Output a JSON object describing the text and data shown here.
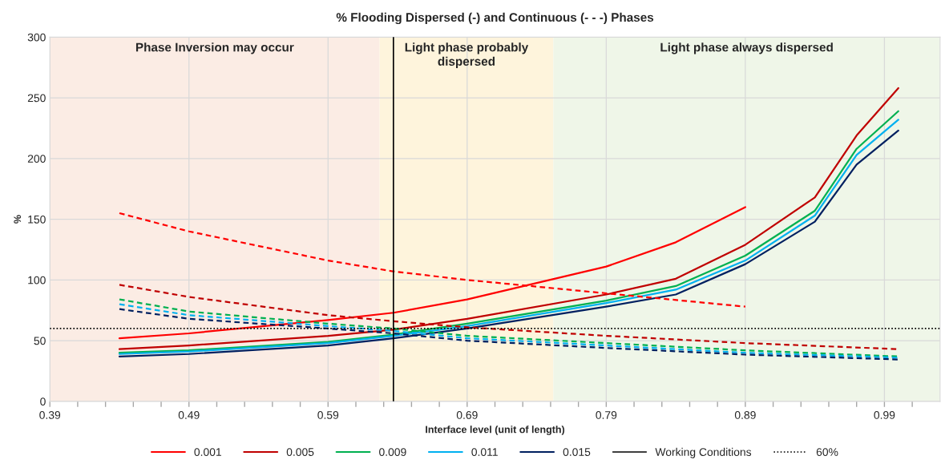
{
  "chart_data": {
    "type": "line",
    "title": "% Flooding Dispersed (-) and Continuous (- - -) Phases",
    "xlabel": "Interface level (unit of length)",
    "ylabel": "%",
    "xlim": [
      0.39,
      1.03
    ],
    "ylim": [
      0,
      300
    ],
    "xticks": [
      0.39,
      {
        "value": 0.41,
        "label": null
      },
      {
        "value": 0.43,
        "label": null
      },
      {
        "value": 0.45,
        "label": null
      },
      {
        "value": 0.47,
        "label": null
      },
      0.49,
      {
        "value": 0.51,
        "label": null
      },
      {
        "value": 0.53,
        "label": null
      },
      {
        "value": 0.55,
        "label": null
      },
      {
        "value": 0.57,
        "label": null
      },
      0.59,
      {
        "value": 0.61,
        "label": null
      },
      {
        "value": 0.63,
        "label": null
      },
      {
        "value": 0.65,
        "label": null
      },
      {
        "value": 0.67,
        "label": null
      },
      0.69,
      {
        "value": 0.71,
        "label": null
      },
      {
        "value": 0.73,
        "label": null
      },
      {
        "value": 0.75,
        "label": null
      },
      {
        "value": 0.77,
        "label": null
      },
      0.79,
      {
        "value": 0.81,
        "label": null
      },
      {
        "value": 0.83,
        "label": null
      },
      {
        "value": 0.85,
        "label": null
      },
      {
        "value": 0.87,
        "label": null
      },
      0.89,
      {
        "value": 0.91,
        "label": null
      },
      {
        "value": 0.93,
        "label": null
      },
      {
        "value": 0.95,
        "label": null
      },
      {
        "value": 0.97,
        "label": null
      },
      0.99,
      {
        "value": 1.01,
        "label": null
      }
    ],
    "yticks": [
      0,
      50,
      100,
      150,
      200,
      250,
      300
    ],
    "grid": true,
    "legend": "bottom",
    "marker": "none",
    "series": [
      {
        "name": "0.001",
        "color": "#ff0000",
        "line_style": "solid",
        "x": [
          0.44,
          0.49,
          0.59,
          0.637,
          0.69,
          0.79,
          0.84,
          0.89
        ],
        "values": [
          52,
          56,
          67,
          73,
          84,
          111,
          131,
          160
        ]
      },
      {
        "name": "0.005",
        "color": "#c00000",
        "line_style": "solid",
        "x": [
          0.44,
          0.49,
          0.59,
          0.637,
          0.69,
          0.79,
          0.84,
          0.89,
          0.94,
          0.97,
          1.0
        ],
        "values": [
          43,
          46,
          54,
          59,
          68,
          88,
          101,
          129,
          168,
          219,
          258
        ]
      },
      {
        "name": "0.009",
        "color": "#00b050",
        "line_style": "solid",
        "x": [
          0.44,
          0.49,
          0.59,
          0.637,
          0.69,
          0.79,
          0.84,
          0.89,
          0.94,
          0.97,
          1.0
        ],
        "values": [
          40,
          42,
          49,
          55,
          64,
          83,
          95,
          120,
          157,
          208,
          239
        ]
      },
      {
        "name": "0.011",
        "color": "#00b0f0",
        "line_style": "solid",
        "x": [
          0.44,
          0.49,
          0.59,
          0.637,
          0.69,
          0.79,
          0.84,
          0.89,
          0.94,
          0.97,
          1.0
        ],
        "values": [
          39,
          41,
          48,
          54,
          62,
          81,
          92,
          116,
          153,
          203,
          232
        ]
      },
      {
        "name": "0.015",
        "color": "#002060",
        "line_style": "solid",
        "x": [
          0.44,
          0.49,
          0.59,
          0.637,
          0.69,
          0.79,
          0.84,
          0.89,
          0.94,
          0.97,
          1.0
        ],
        "values": [
          37,
          39,
          46,
          52,
          60,
          78,
          88,
          113,
          148,
          195,
          223
        ]
      },
      {
        "color": "#ff0000",
        "line_style": "dashed",
        "x": [
          0.44,
          0.49,
          0.59,
          0.637,
          0.69,
          0.79,
          0.89
        ],
        "values": [
          155,
          140,
          116,
          107,
          100,
          89,
          78
        ]
      },
      {
        "color": "#c00000",
        "line_style": "dashed",
        "x": [
          0.44,
          0.49,
          0.59,
          0.637,
          0.69,
          0.79,
          0.89,
          1.0
        ],
        "values": [
          96,
          86,
          71,
          66,
          61,
          54,
          48,
          43
        ]
      },
      {
        "color": "#00b050",
        "line_style": "dashed",
        "x": [
          0.44,
          0.49,
          0.59,
          0.637,
          0.69,
          0.79,
          0.89,
          1.0
        ],
        "values": [
          84,
          74,
          64,
          60,
          54,
          48,
          42,
          37
        ]
      },
      {
        "color": "#00b0f0",
        "line_style": "dashed",
        "x": [
          0.44,
          0.49,
          0.59,
          0.637,
          0.69,
          0.79,
          0.89,
          1.0
        ],
        "values": [
          80,
          71,
          62,
          58,
          52,
          46,
          40,
          36
        ]
      },
      {
        "color": "#002060",
        "line_style": "dashed",
        "x": [
          0.44,
          0.49,
          0.59,
          0.637,
          0.69,
          0.79,
          0.89,
          1.0
        ],
        "values": [
          76,
          68,
          60,
          56,
          50,
          44,
          38.5,
          34.5
        ]
      }
    ],
    "bands": [
      {
        "axis": "x",
        "from": 0.39,
        "to": 0.627,
        "label": "Phase Inversion may occur",
        "color": "#fbece4"
      },
      {
        "axis": "x",
        "from": 0.627,
        "to": 0.752,
        "label": "Light phase probably\ndispersed",
        "color": "#fef4dc"
      },
      {
        "axis": "x",
        "from": 0.752,
        "to": 1.03,
        "label": "Light phase always dispersed",
        "color": "#eff6e8"
      }
    ],
    "ref_lines": [
      {
        "axis": "x",
        "value": 0.637,
        "label": "Working Conditions",
        "color": "#000000",
        "line_style": "solid"
      },
      {
        "axis": "y",
        "value": 60,
        "label": "60%",
        "color": "#000000",
        "line_style": "dotted"
      }
    ]
  }
}
